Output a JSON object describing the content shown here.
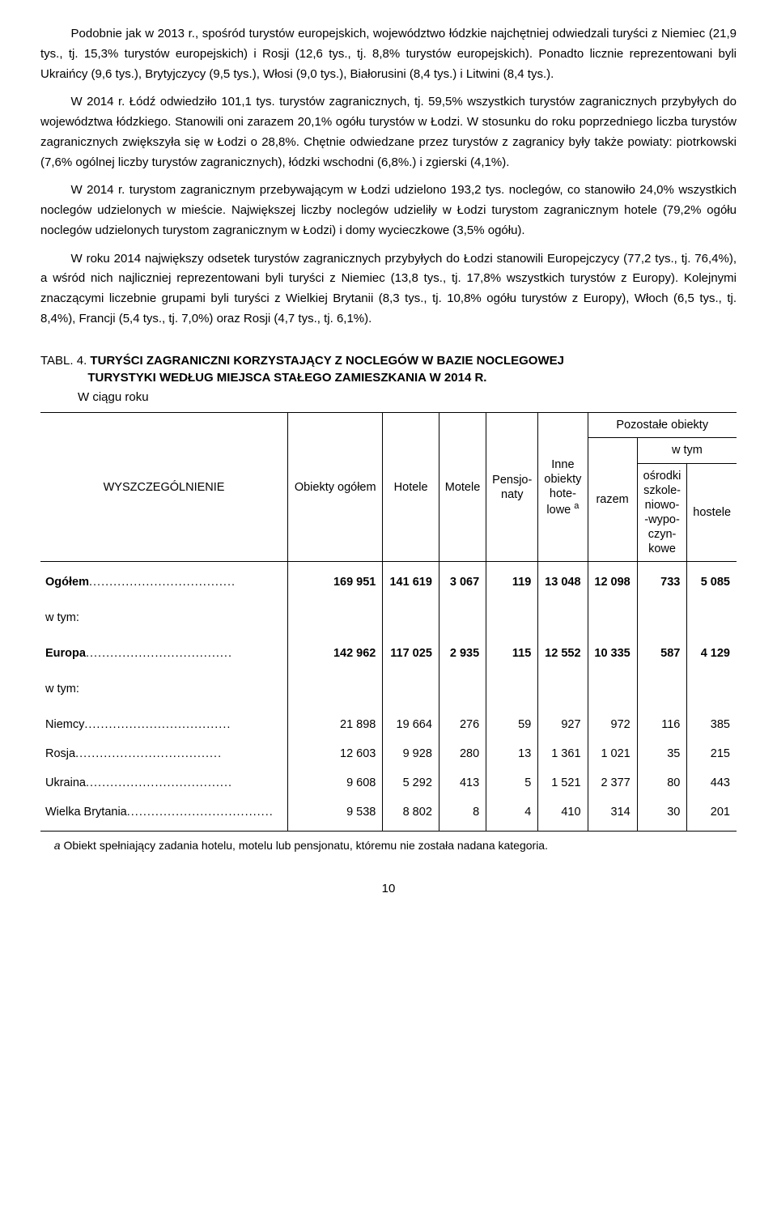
{
  "paragraphs": {
    "p1": "Podobnie jak w 2013 r., spośród turystów europejskich, województwo łódzkie najchętniej odwiedzali turyści z Niemiec (21,9 tys., tj. 15,3% turystów europejskich) i Rosji (12,6 tys., tj. 8,8% turystów europejskich). Ponadto licznie reprezentowani byli Ukraińcy (9,6 tys.), Brytyjczycy (9,5 tys.), Włosi (9,0 tys.), Białorusini (8,4 tys.) i Litwini (8,4 tys.).",
    "p2": "W 2014 r. Łódź odwiedziło 101,1 tys. turystów zagranicznych, tj. 59,5% wszystkich turystów zagranicznych przybyłych do województwa łódzkiego. Stanowili oni zarazem 20,1% ogółu turystów w Łodzi. W stosunku do roku poprzedniego liczba turystów zagranicznych zwiększyła się w Łodzi o 28,8%. Chętnie odwiedzane przez turystów z zagranicy były także powiaty: piotrkowski (7,6% ogólnej liczby turystów zagranicznych), łódzki wschodni (6,8%.) i zgierski (4,1%).",
    "p3": "W 2014 r. turystom zagranicznym przebywającym w Łodzi udzielono 193,2 tys. noclegów, co stanowiło 24,0% wszystkich noclegów udzielonych w mieście. Największej liczby noclegów udzieliły w Łodzi turystom zagranicznym hotele (79,2% ogółu noclegów udzielonych turystom zagranicznym w Łodzi) i domy wycieczkowe (3,5% ogółu).",
    "p4": "W roku 2014 największy odsetek turystów zagranicznych przybyłych do Łodzi stanowili Europejczycy (77,2 tys., tj. 76,4%), a wśród nich najliczniej reprezentowani byli turyści z Niemiec (13,8 tys., tj. 17,8% wszystkich turystów z Europy). Kolejnymi znaczącymi liczebnie grupami byli turyści z Wielkiej Brytanii (8,3 tys., tj. 10,8% ogółu turystów z Europy), Włoch (6,5 tys., tj. 8,4%), Francji (5,4 tys., tj. 7,0%) oraz Rosji (4,7 tys., tj. 6,1%)."
  },
  "table": {
    "tabl_label": "TABL. 4. ",
    "title_line1": "TURYŚCI ZAGRANICZNI KORZYSTAJĄCY Z NOCLEGÓW W BAZIE NOCLEGOWEJ",
    "title_line2": "TURYSTYKI WEDŁUG MIEJSCA STAŁEGO ZAMIESZKANIA W 2014 R.",
    "sub": "W ciągu roku",
    "headers": {
      "col1": "WYSZCZEGÓLNIENIE",
      "col2": "Obiekty ogółem",
      "col3": "Hotele",
      "col4": "Motele",
      "col5": "Pensjo-\nnaty",
      "col6_line1": "Inne",
      "col6_line2": "obiekty",
      "col6_line3": "hote-",
      "col6_line4": "lowe ",
      "col6_sup": "a",
      "group": "Pozostałe obiekty",
      "group_sub": "w tym",
      "col7": "razem",
      "col8_l1": "ośrodki",
      "col8_l2": "szkole-",
      "col8_l3": "niowo-",
      "col8_l4": "-wypo-",
      "col8_l5": "czyn-",
      "col8_l6": "kowe",
      "col9": "hostele"
    },
    "rows": [
      {
        "label": "Ogółem",
        "bold": true,
        "vals": [
          "169 951",
          "141 619",
          "3 067",
          "119",
          "13 048",
          "12 098",
          "733",
          "5 085"
        ]
      },
      {
        "label": "w tym:",
        "wtym": true
      },
      {
        "label": "Europa",
        "bold": true,
        "vals": [
          "142 962",
          "117 025",
          "2 935",
          "115",
          "12 552",
          "10 335",
          "587",
          "4 129"
        ]
      },
      {
        "label": "w tym:",
        "wtym": true
      },
      {
        "label": "Niemcy",
        "vals": [
          "21 898",
          "19 664",
          "276",
          "59",
          "927",
          "972",
          "116",
          "385"
        ]
      },
      {
        "label": "Rosja",
        "vals": [
          "12 603",
          "9 928",
          "280",
          "13",
          "1 361",
          "1 021",
          "35",
          "215"
        ]
      },
      {
        "label": "Ukraina",
        "vals": [
          "9 608",
          "5 292",
          "413",
          "5",
          "1 521",
          "2 377",
          "80",
          "443"
        ]
      },
      {
        "label": "Wielka Brytania",
        "vals": [
          "9 538",
          "8 802",
          "8",
          "4",
          "410",
          "314",
          "30",
          "201"
        ]
      }
    ],
    "footnote_letter": "a",
    "footnote": " Obiekt spełniający zadania hotelu, motelu lub pensjonatu, któremu nie została nadana kategoria."
  },
  "page_number": "10"
}
